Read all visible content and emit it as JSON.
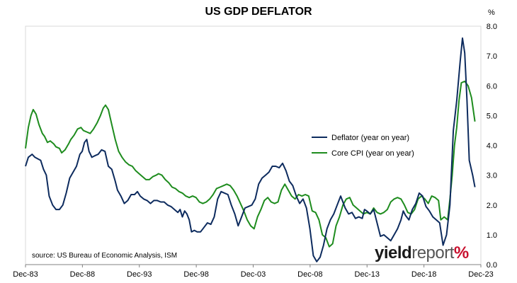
{
  "title": "US GDP DEFLATOR",
  "unit": "%",
  "source": "source: US Bureau of Economic Analysis, ISM",
  "brand": {
    "part1": "yield",
    "part2": "report",
    "part3": "%"
  },
  "chart_data": {
    "type": "line",
    "title": "US GDP DEFLATOR",
    "xlabel": "",
    "ylabel": "%",
    "x_ticks": [
      "Dec-83",
      "Dec-88",
      "Dec-93",
      "Dec-98",
      "Dec-03",
      "Dec-08",
      "Dec-13",
      "Dec-18",
      "Dec-23"
    ],
    "xlim": [
      1983.92,
      2023.92
    ],
    "y_ticks": [
      "0.0",
      "1.0",
      "2.0",
      "3.0",
      "4.0",
      "5.0",
      "6.0",
      "7.0",
      "8.0"
    ],
    "ylim": [
      0,
      8
    ],
    "y_axis_side": "right",
    "grid": false,
    "legend_position": "center-right",
    "colors": {
      "deflator": "#0d2b5e",
      "core_cpi": "#1e8c1e"
    },
    "series": [
      {
        "name": "Deflator (year on year)",
        "points": [
          [
            1983.92,
            3.3
          ],
          [
            1984.17,
            3.6
          ],
          [
            1984.5,
            3.7
          ],
          [
            1984.75,
            3.6
          ],
          [
            1985.0,
            3.55
          ],
          [
            1985.25,
            3.5
          ],
          [
            1985.5,
            3.2
          ],
          [
            1985.75,
            3.0
          ],
          [
            1986.0,
            2.3
          ],
          [
            1986.3,
            2.0
          ],
          [
            1986.6,
            1.85
          ],
          [
            1986.9,
            1.85
          ],
          [
            1987.2,
            2.0
          ],
          [
            1987.5,
            2.4
          ],
          [
            1987.8,
            2.9
          ],
          [
            1988.1,
            3.1
          ],
          [
            1988.4,
            3.3
          ],
          [
            1988.7,
            3.7
          ],
          [
            1988.9,
            3.8
          ],
          [
            1989.1,
            4.1
          ],
          [
            1989.3,
            4.2
          ],
          [
            1989.5,
            3.8
          ],
          [
            1989.75,
            3.6
          ],
          [
            1990.0,
            3.65
          ],
          [
            1990.3,
            3.7
          ],
          [
            1990.6,
            3.85
          ],
          [
            1990.9,
            3.8
          ],
          [
            1991.2,
            3.3
          ],
          [
            1991.5,
            3.2
          ],
          [
            1991.8,
            2.8
          ],
          [
            1992.0,
            2.5
          ],
          [
            1992.3,
            2.3
          ],
          [
            1992.6,
            2.05
          ],
          [
            1992.9,
            2.15
          ],
          [
            1993.2,
            2.35
          ],
          [
            1993.5,
            2.35
          ],
          [
            1993.75,
            2.45
          ],
          [
            1994.0,
            2.3
          ],
          [
            1994.3,
            2.2
          ],
          [
            1994.6,
            2.15
          ],
          [
            1994.9,
            2.05
          ],
          [
            1995.2,
            2.15
          ],
          [
            1995.5,
            2.15
          ],
          [
            1995.8,
            2.1
          ],
          [
            1996.1,
            2.1
          ],
          [
            1996.4,
            2.0
          ],
          [
            1996.7,
            1.95
          ],
          [
            1997.0,
            1.85
          ],
          [
            1997.3,
            1.75
          ],
          [
            1997.5,
            1.85
          ],
          [
            1997.7,
            1.6
          ],
          [
            1997.9,
            1.8
          ],
          [
            1998.1,
            1.7
          ],
          [
            1998.3,
            1.5
          ],
          [
            1998.5,
            1.1
          ],
          [
            1998.75,
            1.15
          ],
          [
            1999.0,
            1.1
          ],
          [
            1999.3,
            1.1
          ],
          [
            1999.6,
            1.25
          ],
          [
            1999.9,
            1.4
          ],
          [
            2000.2,
            1.35
          ],
          [
            2000.5,
            1.6
          ],
          [
            2000.8,
            2.2
          ],
          [
            2001.1,
            2.45
          ],
          [
            2001.4,
            2.4
          ],
          [
            2001.7,
            2.35
          ],
          [
            2002.0,
            2.0
          ],
          [
            2002.3,
            1.7
          ],
          [
            2002.6,
            1.3
          ],
          [
            2002.9,
            1.6
          ],
          [
            2003.2,
            1.9
          ],
          [
            2003.5,
            1.95
          ],
          [
            2003.8,
            2.0
          ],
          [
            2004.1,
            2.2
          ],
          [
            2004.4,
            2.7
          ],
          [
            2004.7,
            2.9
          ],
          [
            2005.0,
            3.0
          ],
          [
            2005.3,
            3.1
          ],
          [
            2005.6,
            3.3
          ],
          [
            2005.9,
            3.3
          ],
          [
            2006.2,
            3.25
          ],
          [
            2006.5,
            3.4
          ],
          [
            2006.8,
            3.15
          ],
          [
            2007.1,
            2.8
          ],
          [
            2007.4,
            2.65
          ],
          [
            2007.7,
            2.3
          ],
          [
            2008.0,
            2.05
          ],
          [
            2008.3,
            2.2
          ],
          [
            2008.6,
            1.9
          ],
          [
            2008.9,
            1.2
          ],
          [
            2009.2,
            0.3
          ],
          [
            2009.5,
            0.1
          ],
          [
            2009.8,
            0.25
          ],
          [
            2010.1,
            0.65
          ],
          [
            2010.4,
            1.2
          ],
          [
            2010.7,
            1.5
          ],
          [
            2011.0,
            1.7
          ],
          [
            2011.3,
            2.0
          ],
          [
            2011.6,
            2.3
          ],
          [
            2011.8,
            2.1
          ],
          [
            2012.0,
            1.9
          ],
          [
            2012.3,
            1.7
          ],
          [
            2012.6,
            1.75
          ],
          [
            2012.9,
            1.55
          ],
          [
            2013.2,
            1.6
          ],
          [
            2013.5,
            1.55
          ],
          [
            2013.7,
            1.85
          ],
          [
            2013.9,
            1.8
          ],
          [
            2014.2,
            1.7
          ],
          [
            2014.5,
            1.85
          ],
          [
            2014.8,
            1.4
          ],
          [
            2015.1,
            0.95
          ],
          [
            2015.4,
            1.0
          ],
          [
            2015.7,
            0.9
          ],
          [
            2016.0,
            0.8
          ],
          [
            2016.3,
            1.0
          ],
          [
            2016.6,
            1.2
          ],
          [
            2016.9,
            1.5
          ],
          [
            2017.1,
            1.8
          ],
          [
            2017.3,
            1.65
          ],
          [
            2017.6,
            1.5
          ],
          [
            2017.9,
            1.85
          ],
          [
            2018.2,
            2.05
          ],
          [
            2018.5,
            2.4
          ],
          [
            2018.8,
            2.3
          ],
          [
            2019.1,
            1.95
          ],
          [
            2019.4,
            1.8
          ],
          [
            2019.7,
            1.6
          ],
          [
            2020.0,
            1.5
          ],
          [
            2020.3,
            1.4
          ],
          [
            2020.6,
            0.65
          ],
          [
            2020.9,
            1.0
          ],
          [
            2021.2,
            2.0
          ],
          [
            2021.5,
            4.5
          ],
          [
            2021.8,
            5.5
          ],
          [
            2022.1,
            6.8
          ],
          [
            2022.3,
            7.6
          ],
          [
            2022.5,
            7.1
          ],
          [
            2022.7,
            5.5
          ],
          [
            2022.9,
            3.5
          ],
          [
            2023.2,
            3.0
          ],
          [
            2023.4,
            2.6
          ]
        ]
      },
      {
        "name": "Core CPI (year on year)",
        "points": [
          [
            1983.92,
            3.9
          ],
          [
            1984.17,
            4.6
          ],
          [
            1984.4,
            5.0
          ],
          [
            1984.6,
            5.2
          ],
          [
            1984.85,
            5.05
          ],
          [
            1985.1,
            4.7
          ],
          [
            1985.4,
            4.4
          ],
          [
            1985.6,
            4.3
          ],
          [
            1985.85,
            4.1
          ],
          [
            1986.1,
            4.15
          ],
          [
            1986.4,
            4.05
          ],
          [
            1986.6,
            3.95
          ],
          [
            1986.9,
            3.9
          ],
          [
            1987.1,
            3.75
          ],
          [
            1987.4,
            3.85
          ],
          [
            1987.7,
            4.05
          ],
          [
            1987.9,
            4.2
          ],
          [
            1988.2,
            4.35
          ],
          [
            1988.5,
            4.55
          ],
          [
            1988.8,
            4.6
          ],
          [
            1989.0,
            4.5
          ],
          [
            1989.3,
            4.45
          ],
          [
            1989.6,
            4.4
          ],
          [
            1989.9,
            4.55
          ],
          [
            1990.2,
            4.75
          ],
          [
            1990.5,
            5.0
          ],
          [
            1990.75,
            5.25
          ],
          [
            1990.95,
            5.35
          ],
          [
            1991.2,
            5.2
          ],
          [
            1991.5,
            4.7
          ],
          [
            1991.8,
            4.2
          ],
          [
            1992.1,
            3.8
          ],
          [
            1992.4,
            3.6
          ],
          [
            1992.7,
            3.45
          ],
          [
            1993.0,
            3.35
          ],
          [
            1993.3,
            3.3
          ],
          [
            1993.6,
            3.15
          ],
          [
            1993.9,
            3.05
          ],
          [
            1994.2,
            2.95
          ],
          [
            1994.5,
            2.85
          ],
          [
            1994.8,
            2.85
          ],
          [
            1995.1,
            2.95
          ],
          [
            1995.4,
            3.0
          ],
          [
            1995.6,
            3.05
          ],
          [
            1995.9,
            3.0
          ],
          [
            1996.2,
            2.85
          ],
          [
            1996.5,
            2.75
          ],
          [
            1996.8,
            2.6
          ],
          [
            1997.1,
            2.55
          ],
          [
            1997.4,
            2.45
          ],
          [
            1997.7,
            2.4
          ],
          [
            1998.0,
            2.3
          ],
          [
            1998.3,
            2.25
          ],
          [
            1998.6,
            2.3
          ],
          [
            1998.9,
            2.25
          ],
          [
            1999.2,
            2.1
          ],
          [
            1999.5,
            2.05
          ],
          [
            1999.8,
            2.1
          ],
          [
            2000.1,
            2.2
          ],
          [
            2000.4,
            2.35
          ],
          [
            2000.7,
            2.55
          ],
          [
            2001.0,
            2.6
          ],
          [
            2001.3,
            2.65
          ],
          [
            2001.6,
            2.7
          ],
          [
            2001.9,
            2.65
          ],
          [
            2002.2,
            2.5
          ],
          [
            2002.5,
            2.3
          ],
          [
            2002.8,
            2.05
          ],
          [
            2003.1,
            1.8
          ],
          [
            2003.4,
            1.5
          ],
          [
            2003.7,
            1.3
          ],
          [
            2004.0,
            1.2
          ],
          [
            2004.3,
            1.6
          ],
          [
            2004.6,
            1.85
          ],
          [
            2004.9,
            2.15
          ],
          [
            2005.2,
            2.25
          ],
          [
            2005.5,
            2.1
          ],
          [
            2005.8,
            2.05
          ],
          [
            2006.1,
            2.1
          ],
          [
            2006.4,
            2.5
          ],
          [
            2006.7,
            2.7
          ],
          [
            2007.0,
            2.5
          ],
          [
            2007.3,
            2.3
          ],
          [
            2007.6,
            2.2
          ],
          [
            2007.9,
            2.35
          ],
          [
            2008.2,
            2.3
          ],
          [
            2008.5,
            2.35
          ],
          [
            2008.8,
            2.3
          ],
          [
            2009.1,
            1.8
          ],
          [
            2009.4,
            1.75
          ],
          [
            2009.7,
            1.5
          ],
          [
            2010.0,
            1.0
          ],
          [
            2010.3,
            0.9
          ],
          [
            2010.6,
            0.6
          ],
          [
            2010.9,
            0.7
          ],
          [
            2011.2,
            1.3
          ],
          [
            2011.5,
            1.6
          ],
          [
            2011.8,
            2.0
          ],
          [
            2012.1,
            2.2
          ],
          [
            2012.4,
            2.25
          ],
          [
            2012.7,
            2.0
          ],
          [
            2013.0,
            1.9
          ],
          [
            2013.3,
            1.8
          ],
          [
            2013.6,
            1.7
          ],
          [
            2013.9,
            1.75
          ],
          [
            2014.2,
            1.7
          ],
          [
            2014.5,
            1.9
          ],
          [
            2014.8,
            1.75
          ],
          [
            2015.1,
            1.7
          ],
          [
            2015.4,
            1.75
          ],
          [
            2015.7,
            1.85
          ],
          [
            2016.0,
            2.1
          ],
          [
            2016.3,
            2.2
          ],
          [
            2016.6,
            2.25
          ],
          [
            2016.9,
            2.2
          ],
          [
            2017.2,
            2.0
          ],
          [
            2017.5,
            1.75
          ],
          [
            2017.8,
            1.7
          ],
          [
            2018.1,
            1.85
          ],
          [
            2018.4,
            2.2
          ],
          [
            2018.7,
            2.3
          ],
          [
            2019.0,
            2.2
          ],
          [
            2019.3,
            2.05
          ],
          [
            2019.6,
            2.3
          ],
          [
            2019.9,
            2.25
          ],
          [
            2020.2,
            2.15
          ],
          [
            2020.4,
            1.5
          ],
          [
            2020.7,
            1.6
          ],
          [
            2021.0,
            1.5
          ],
          [
            2021.2,
            2.2
          ],
          [
            2021.4,
            3.0
          ],
          [
            2021.6,
            4.0
          ],
          [
            2021.8,
            4.6
          ],
          [
            2022.0,
            5.5
          ],
          [
            2022.2,
            6.1
          ],
          [
            2022.5,
            6.15
          ],
          [
            2022.8,
            6.0
          ],
          [
            2023.1,
            5.6
          ],
          [
            2023.4,
            4.8
          ]
        ]
      }
    ]
  }
}
